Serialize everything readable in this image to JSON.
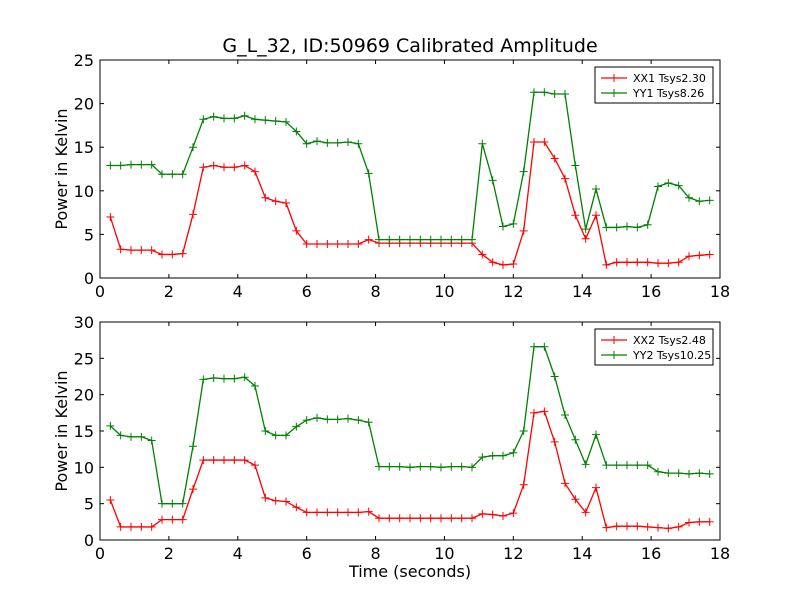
{
  "title": "G_L_32, ID:50969 Calibrated Amplitude",
  "chart_data": [
    {
      "type": "line",
      "ylabel": "Power in Kelvin",
      "xlabel": "",
      "xlim": [
        0,
        18
      ],
      "ylim": [
        0,
        25
      ],
      "xticks": [
        0,
        2,
        4,
        6,
        8,
        10,
        12,
        14,
        16,
        18
      ],
      "yticks": [
        0,
        5,
        10,
        15,
        20,
        25
      ],
      "legend_position": "top-right",
      "x": [
        0.3,
        0.6,
        0.9,
        1.2,
        1.5,
        1.8,
        2.1,
        2.4,
        2.7,
        3.0,
        3.3,
        3.6,
        3.9,
        4.2,
        4.5,
        4.8,
        5.1,
        5.4,
        5.7,
        6.0,
        6.3,
        6.6,
        6.9,
        7.2,
        7.5,
        7.8,
        8.1,
        8.4,
        8.7,
        9.0,
        9.3,
        9.6,
        9.9,
        10.2,
        10.5,
        10.8,
        11.1,
        11.4,
        11.7,
        12.0,
        12.3,
        12.6,
        12.9,
        13.2,
        13.5,
        13.8,
        14.1,
        14.4,
        14.7,
        15.0,
        15.3,
        15.6,
        15.9,
        16.2,
        16.5,
        16.8,
        17.1,
        17.4,
        17.7
      ],
      "series": [
        {
          "name": "XX1 Tsys2.30",
          "color": "#ff0000",
          "values": [
            7.0,
            3.3,
            3.2,
            3.2,
            3.2,
            2.7,
            2.7,
            2.8,
            7.3,
            12.7,
            12.9,
            12.7,
            12.7,
            12.9,
            12.2,
            9.2,
            8.8,
            8.6,
            5.4,
            3.9,
            3.9,
            3.9,
            3.9,
            3.9,
            3.9,
            4.4,
            4.0,
            4.0,
            4.0,
            4.0,
            4.0,
            4.0,
            4.0,
            4.0,
            4.0,
            4.0,
            2.7,
            1.8,
            1.5,
            1.6,
            5.4,
            15.6,
            15.6,
            13.7,
            11.4,
            7.2,
            4.5,
            7.2,
            1.5,
            1.8,
            1.8,
            1.8,
            1.8,
            1.7,
            1.7,
            1.8,
            2.5,
            2.6,
            2.7
          ]
        },
        {
          "name": "YY1 Tsys8.26",
          "color": "#008000",
          "values": [
            12.9,
            12.9,
            13.0,
            13.0,
            13.0,
            11.9,
            11.9,
            11.9,
            15.0,
            18.2,
            18.5,
            18.3,
            18.3,
            18.6,
            18.2,
            18.1,
            18.0,
            17.9,
            16.8,
            15.4,
            15.7,
            15.5,
            15.5,
            15.6,
            15.4,
            12.0,
            4.4,
            4.4,
            4.4,
            4.4,
            4.4,
            4.4,
            4.4,
            4.4,
            4.4,
            4.4,
            15.4,
            11.2,
            5.9,
            6.2,
            12.2,
            21.3,
            21.3,
            21.1,
            21.1,
            12.9,
            5.6,
            10.2,
            5.8,
            5.8,
            5.9,
            5.8,
            6.1,
            10.5,
            10.9,
            10.6,
            9.2,
            8.8,
            8.9
          ]
        }
      ]
    },
    {
      "type": "line",
      "ylabel": "Power in Kelvin",
      "xlabel": "Time (seconds)",
      "xlim": [
        0,
        18
      ],
      "ylim": [
        0,
        30
      ],
      "xticks": [
        0,
        2,
        4,
        6,
        8,
        10,
        12,
        14,
        16,
        18
      ],
      "yticks": [
        0,
        5,
        10,
        15,
        20,
        25,
        30
      ],
      "legend_position": "top-right",
      "x": [
        0.3,
        0.6,
        0.9,
        1.2,
        1.5,
        1.8,
        2.1,
        2.4,
        2.7,
        3.0,
        3.3,
        3.6,
        3.9,
        4.2,
        4.5,
        4.8,
        5.1,
        5.4,
        5.7,
        6.0,
        6.3,
        6.6,
        6.9,
        7.2,
        7.5,
        7.8,
        8.1,
        8.4,
        8.7,
        9.0,
        9.3,
        9.6,
        9.9,
        10.2,
        10.5,
        10.8,
        11.1,
        11.4,
        11.7,
        12.0,
        12.3,
        12.6,
        12.9,
        13.2,
        13.5,
        13.8,
        14.1,
        14.4,
        14.7,
        15.0,
        15.3,
        15.6,
        15.9,
        16.2,
        16.5,
        16.8,
        17.1,
        17.4,
        17.7
      ],
      "series": [
        {
          "name": "XX2 Tsys2.48",
          "color": "#ff0000",
          "values": [
            5.5,
            1.8,
            1.8,
            1.8,
            1.8,
            2.8,
            2.8,
            2.8,
            7.0,
            11.0,
            11.0,
            11.0,
            11.0,
            11.0,
            10.3,
            5.8,
            5.4,
            5.3,
            4.5,
            3.8,
            3.8,
            3.8,
            3.8,
            3.8,
            3.8,
            3.9,
            3.0,
            3.0,
            3.0,
            3.0,
            3.0,
            3.0,
            3.0,
            3.0,
            3.0,
            3.0,
            3.6,
            3.5,
            3.3,
            3.7,
            7.6,
            17.5,
            17.7,
            13.5,
            7.8,
            5.6,
            3.8,
            7.2,
            1.7,
            1.9,
            1.9,
            1.9,
            1.8,
            1.7,
            1.6,
            1.8,
            2.4,
            2.5,
            2.5
          ]
        },
        {
          "name": "YY2 Tsys10.25",
          "color": "#008000",
          "values": [
            15.7,
            14.4,
            14.2,
            14.2,
            13.7,
            5.0,
            5.0,
            5.0,
            12.9,
            22.1,
            22.3,
            22.2,
            22.2,
            22.4,
            21.2,
            15.0,
            14.4,
            14.4,
            15.6,
            16.5,
            16.8,
            16.6,
            16.6,
            16.7,
            16.5,
            16.2,
            10.1,
            10.1,
            10.1,
            10.0,
            10.1,
            10.1,
            10.0,
            10.1,
            10.1,
            10.0,
            11.4,
            11.6,
            11.6,
            12.0,
            15.0,
            26.6,
            26.6,
            22.5,
            17.2,
            13.8,
            10.4,
            14.5,
            10.3,
            10.3,
            10.3,
            10.3,
            10.3,
            9.4,
            9.2,
            9.2,
            9.1,
            9.2,
            9.1
          ]
        }
      ]
    }
  ]
}
